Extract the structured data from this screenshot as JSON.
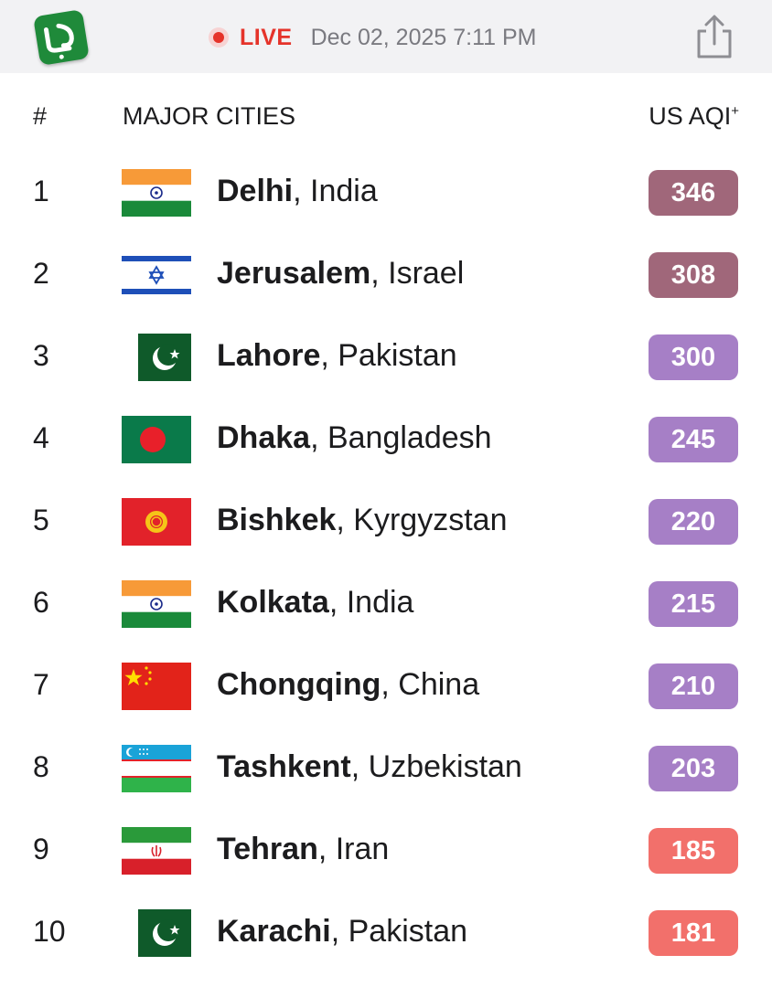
{
  "header": {
    "live_label": "LIVE",
    "datetime": "Dec 02, 2025 7:11 PM",
    "logo_icon": "app-logo-icon",
    "share_icon": "share-icon"
  },
  "table": {
    "col_rank": "#",
    "col_city": "MAJOR CITIES",
    "col_aqi": "US AQI",
    "col_aqi_sup": "+",
    "rows": [
      {
        "rank": "1",
        "city": "Delhi",
        "country": ", India",
        "aqi": "346",
        "color": "#a0677a",
        "flag": "india"
      },
      {
        "rank": "2",
        "city": "Jerusalem",
        "country": ", Israel",
        "aqi": "308",
        "color": "#a0677a",
        "flag": "israel"
      },
      {
        "rank": "3",
        "city": "Lahore",
        "country": ", Pakistan",
        "aqi": "300",
        "color": "#a67fc6",
        "flag": "pakistan"
      },
      {
        "rank": "4",
        "city": "Dhaka",
        "country": ", Bangladesh",
        "aqi": "245",
        "color": "#a67fc6",
        "flag": "bangladesh"
      },
      {
        "rank": "5",
        "city": "Bishkek",
        "country": ", Kyrgyzstan",
        "aqi": "220",
        "color": "#a67fc6",
        "flag": "kyrgyzstan"
      },
      {
        "rank": "6",
        "city": "Kolkata",
        "country": ", India",
        "aqi": "215",
        "color": "#a67fc6",
        "flag": "india"
      },
      {
        "rank": "7",
        "city": "Chongqing",
        "country": ", China",
        "aqi": "210",
        "color": "#a67fc6",
        "flag": "china"
      },
      {
        "rank": "8",
        "city": "Tashkent",
        "country": ", Uzbekistan",
        "aqi": "203",
        "color": "#a67fc6",
        "flag": "uzbekistan"
      },
      {
        "rank": "9",
        "city": "Tehran",
        "country": ", Iran",
        "aqi": "185",
        "color": "#f2706b",
        "flag": "iran"
      },
      {
        "rank": "10",
        "city": "Karachi",
        "country": ", Pakistan",
        "aqi": "181",
        "color": "#f2706b",
        "flag": "pakistan"
      }
    ]
  }
}
